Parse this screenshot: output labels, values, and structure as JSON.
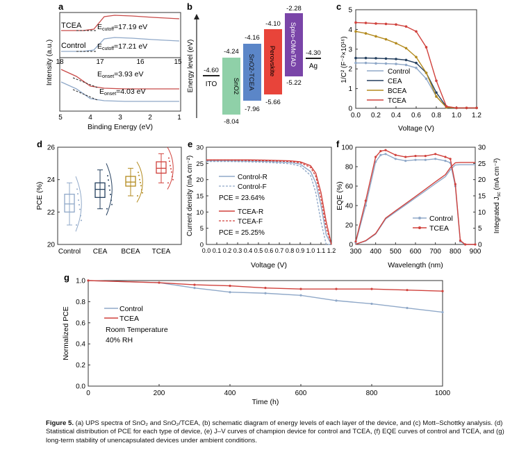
{
  "panels": {
    "a": {
      "letter": "a",
      "ylabel": "Intensity (a.u.)",
      "xlabel": "Binding Energy (eV)",
      "top_label_tcea": "TCEA",
      "top_label_control": "Control",
      "cutoff_tcea": "E",
      "cutoff_tcea_sub": "cutoff",
      "cutoff_tcea_val": "=17.19 eV",
      "cutoff_ctrl": "E",
      "cutoff_ctrl_sub": "cutoff",
      "cutoff_ctrl_val": "=17.21 eV",
      "onset_tcea": "E",
      "onset_tcea_sub": "onset",
      "onset_tcea_val": "=3.93 eV",
      "onset_ctrl": "E",
      "onset_ctrl_sub": "onset",
      "onset_ctrl_val": "=4.03 eV",
      "top_ticks": [
        "18",
        "17",
        "16",
        "15"
      ],
      "bottom_ticks": [
        "5",
        "4",
        "3",
        "2",
        "1"
      ]
    },
    "b": {
      "letter": "b",
      "ylabel": "Energy level (eV)",
      "layers": [
        {
          "name": "ITO",
          "top": "-4.60",
          "bottom": "",
          "color": "#ffffff"
        },
        {
          "name": "SnO2",
          "top": "-4.24",
          "bottom": "-8.04",
          "color": "#7cc99a"
        },
        {
          "name": "SnO2-TCEA",
          "top": "-4.16",
          "bottom": "-7.96",
          "color": "#4c7fc5"
        },
        {
          "name": "Perovskite",
          "top": "-4.10",
          "bottom": "-5.66",
          "color": "#e8372e"
        },
        {
          "name": "Spiro-OMeTAD",
          "top": "-2.28",
          "bottom": "-5.22",
          "color": "#7040a0"
        },
        {
          "name": "Ag",
          "top": "-4.30",
          "bottom": "",
          "color": "#ffffff"
        }
      ]
    },
    "c": {
      "letter": "c",
      "ylabel": "1/C² (F⁻²×10¹⁶)",
      "xlabel": "Voltage (V)",
      "legend": [
        "Control",
        "CEA",
        "BCEA",
        "TCEA"
      ]
    },
    "d": {
      "letter": "d",
      "ylabel": "PCE (%)",
      "categories": [
        "Control",
        "CEA",
        "BCEA",
        "TCEA"
      ]
    },
    "e": {
      "letter": "e",
      "ylabel": "Current density (mA cm⁻²)",
      "xlabel": "Voltage (V)",
      "legend": [
        "Control-R",
        "Control-F",
        "TCEA-R",
        "TCEA-F"
      ],
      "pce_control": "PCE = 23.64%",
      "pce_tcea": "PCE = 25.25%"
    },
    "f": {
      "letter": "f",
      "ylabel_left": "EQE (%)",
      "ylabel_right": "Integrated J",
      "ylabel_right_sub": "sc",
      "ylabel_right_unit": " (mA cm⁻²)",
      "xlabel": "Wavelength (nm)",
      "legend": [
        "Control",
        "TCEA"
      ]
    },
    "g": {
      "letter": "g",
      "ylabel": "Normalized PCE",
      "xlabel": "Time (h)",
      "legend": [
        "Control",
        "TCEA"
      ],
      "note1": "Room Temperature",
      "note2": "40% RH"
    }
  },
  "chart_data": [
    {
      "type": "line",
      "panel": "a",
      "title": "",
      "xlabel": "Binding Energy (eV)",
      "ylabel": "Intensity (a.u.)",
      "series": [
        {
          "name": "TCEA",
          "values": []
        },
        {
          "name": "Control",
          "values": []
        }
      ]
    },
    {
      "type": "bar",
      "panel": "b",
      "title": "",
      "ylabel": "Energy level (eV)",
      "categories": [
        "ITO",
        "SnO2",
        "SnO2-TCEA",
        "Perovskite",
        "Spiro-OMeTAD",
        "Ag"
      ],
      "series": [
        {
          "name": "top",
          "values": [
            -4.6,
            -4.24,
            -4.16,
            -4.1,
            -2.28,
            -4.3
          ]
        },
        {
          "name": "bottom",
          "values": [
            null,
            -8.04,
            -7.96,
            -5.66,
            -5.22,
            null
          ]
        }
      ]
    },
    {
      "type": "line",
      "panel": "c",
      "xlabel": "Voltage (V)",
      "ylabel": "1/C² (F⁻²×10¹⁶)",
      "xlim": [
        0.0,
        1.2
      ],
      "ylim": [
        0,
        5
      ],
      "x": [
        0.0,
        0.1,
        0.2,
        0.3,
        0.4,
        0.5,
        0.6,
        0.7,
        0.8,
        0.9,
        1.0,
        1.1,
        1.2
      ],
      "series": [
        {
          "name": "Control",
          "values": [
            2.3,
            2.3,
            2.28,
            2.27,
            2.25,
            2.2,
            2.05,
            1.5,
            0.6,
            0.05,
            0.02,
            0.02,
            0.02
          ]
        },
        {
          "name": "CEA",
          "values": [
            2.55,
            2.55,
            2.54,
            2.52,
            2.5,
            2.45,
            2.3,
            1.8,
            0.8,
            0.08,
            0.02,
            0.02,
            0.02
          ]
        },
        {
          "name": "BCEA",
          "values": [
            3.9,
            3.8,
            3.65,
            3.5,
            3.3,
            3.05,
            2.6,
            1.8,
            0.6,
            0.05,
            0.02,
            0.02,
            0.02
          ]
        },
        {
          "name": "TCEA",
          "values": [
            4.35,
            4.33,
            4.3,
            4.28,
            4.25,
            4.15,
            3.9,
            3.1,
            1.4,
            0.1,
            0.02,
            0.02,
            0.02
          ]
        }
      ]
    },
    {
      "type": "scatter",
      "panel": "d",
      "ylabel": "PCE (%)",
      "ylim": [
        20,
        26
      ],
      "categories": [
        "Control",
        "CEA",
        "BCEA",
        "TCEA"
      ],
      "series": [
        {
          "name": "median",
          "values": [
            22.5,
            23.4,
            23.85,
            24.7
          ]
        }
      ]
    },
    {
      "type": "line",
      "panel": "e",
      "xlabel": "Voltage (V)",
      "ylabel": "Current density (mA cm⁻²)",
      "xlim": [
        0.0,
        1.2
      ],
      "ylim": [
        0,
        30
      ],
      "x": [
        0.0,
        0.2,
        0.4,
        0.6,
        0.8,
        0.9,
        1.0,
        1.05,
        1.1,
        1.15,
        1.2
      ],
      "series": [
        {
          "name": "Control-R",
          "values": [
            25.8,
            25.8,
            25.7,
            25.6,
            25.3,
            24.8,
            22.5,
            19,
            12,
            3,
            0
          ]
        },
        {
          "name": "Control-F",
          "values": [
            25.6,
            25.6,
            25.5,
            25.3,
            24.9,
            24.2,
            21.3,
            16,
            7,
            0,
            0
          ]
        },
        {
          "name": "TCEA-R",
          "values": [
            26.1,
            26.1,
            26.1,
            26.0,
            25.8,
            25.5,
            24.3,
            22,
            16,
            7,
            0
          ]
        },
        {
          "name": "TCEA-F",
          "values": [
            26.0,
            26.0,
            25.9,
            25.8,
            25.6,
            25.2,
            23.8,
            21,
            14,
            5,
            0
          ]
        }
      ]
    },
    {
      "type": "line",
      "panel": "f",
      "xlabel": "Wavelength (nm)",
      "ylabel": "EQE (%)",
      "xlim": [
        300,
        900
      ],
      "ylim": [
        0,
        100
      ],
      "x": [
        300,
        350,
        400,
        425,
        450,
        500,
        550,
        600,
        650,
        700,
        750,
        775,
        800,
        825,
        850,
        900
      ],
      "series": [
        {
          "name": "Control",
          "values": [
            2,
            40,
            85,
            92,
            93,
            88,
            86,
            87,
            87,
            88,
            86,
            84,
            60,
            3,
            0,
            0
          ]
        },
        {
          "name": "TCEA",
          "values": [
            3,
            45,
            90,
            96,
            97,
            92,
            90,
            91,
            91,
            93,
            90,
            88,
            62,
            4,
            0,
            0
          ]
        }
      ]
    },
    {
      "type": "line",
      "panel": "g",
      "xlabel": "Time (h)",
      "ylabel": "Normalized PCE",
      "xlim": [
        0,
        1000
      ],
      "ylim": [
        0,
        1.0
      ],
      "x": [
        0,
        200,
        300,
        400,
        500,
        600,
        700,
        800,
        900,
        1000
      ],
      "series": [
        {
          "name": "Control",
          "values": [
            1.0,
            0.98,
            0.93,
            0.89,
            0.88,
            0.86,
            0.81,
            0.78,
            0.74,
            0.7
          ]
        },
        {
          "name": "TCEA",
          "values": [
            1.0,
            0.98,
            0.96,
            0.95,
            0.93,
            0.92,
            0.92,
            0.92,
            0.91,
            0.9
          ]
        }
      ]
    }
  ],
  "caption": {
    "label": "Figure 5.",
    "text": " (a) UPS spectra of SnO₂ and SnO₂/TCEA, (b) schematic diagram of energy levels of each layer of the device, and (c) Mott–Schottky analysis. (d) Statistical distribution of PCE for each type of device, (e) J–V curves of champion device for control and TCEA, (f) EQE curves of control and TCEA, and (g) long-term stability of unencapsulated devices under ambient conditions."
  },
  "colors": {
    "control": "#8fa8c8",
    "cea": "#243f5e",
    "bcea": "#b38a1d",
    "tcea": "#d0413c"
  }
}
